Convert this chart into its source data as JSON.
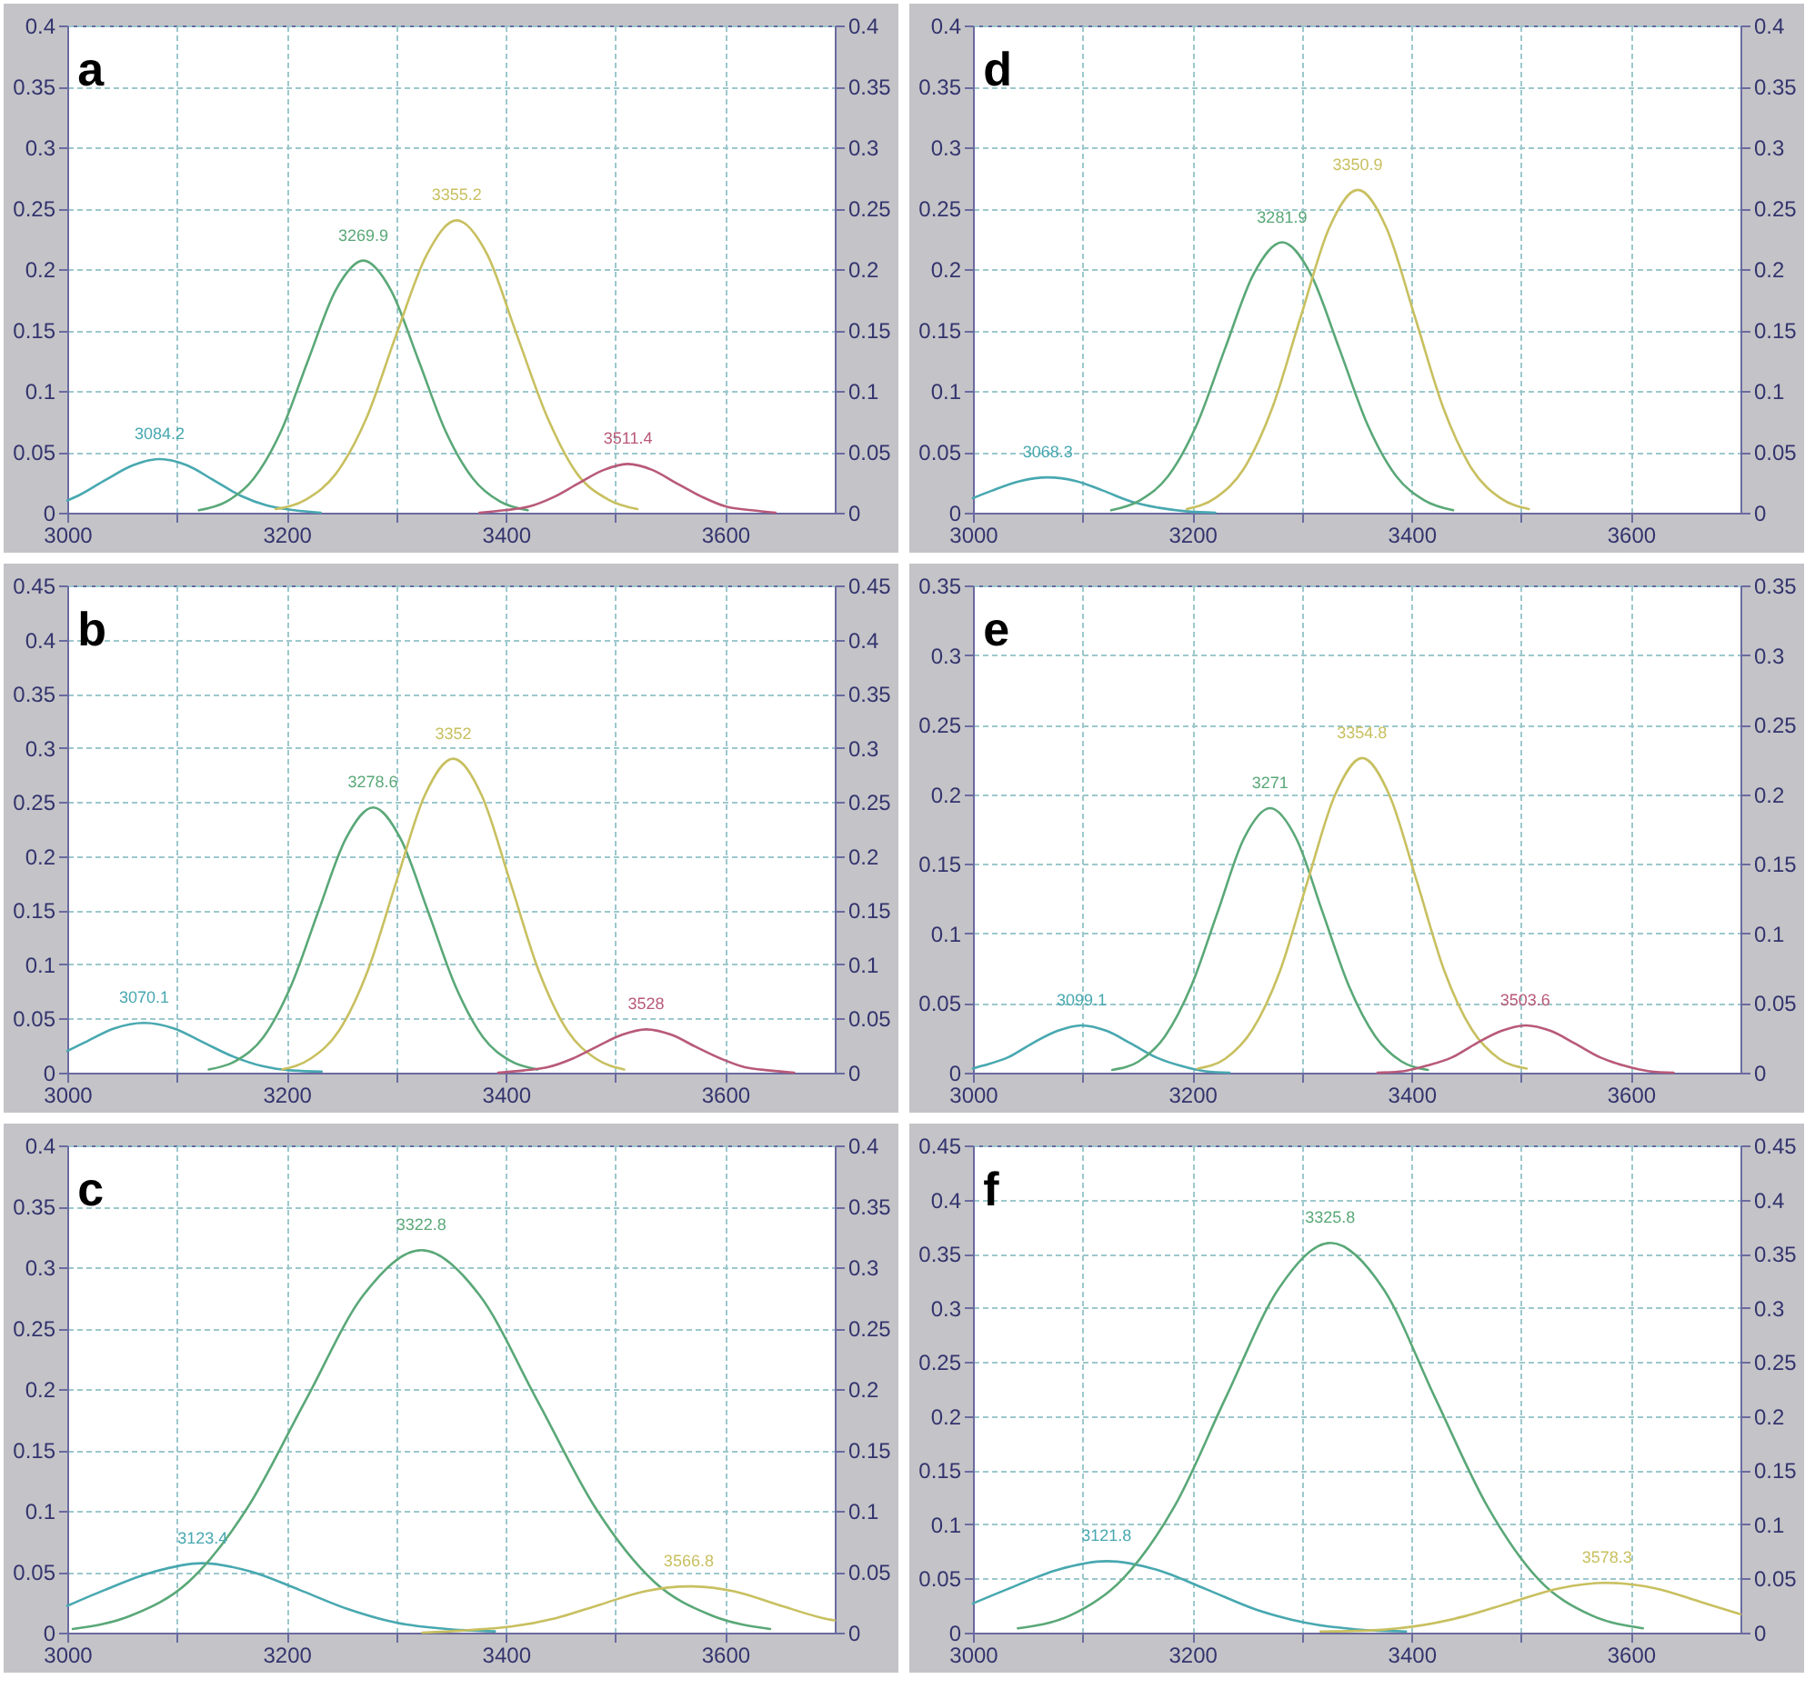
{
  "chart_data": [
    {
      "type": "line",
      "title": "a",
      "xlim": [
        3000,
        3700
      ],
      "xticks": [
        3000,
        {
          "value": 3100,
          "label": null
        },
        3200,
        {
          "value": 3300,
          "label": null
        },
        3400,
        {
          "value": 3500,
          "label": null
        },
        3600
      ],
      "ylim": [
        0,
        0.4
      ],
      "yticks": [
        0,
        0.05,
        0.1,
        0.15,
        0.2,
        0.25,
        0.3,
        0.35,
        0.4
      ],
      "y2lim": [
        0,
        0.4
      ],
      "y2ticks": [
        0,
        0.05,
        0.1,
        0.15,
        0.2,
        0.25,
        0.3,
        0.35,
        0.4
      ],
      "grid": true,
      "line_style": "solid",
      "series": [
        {
          "color": "#48a8b0",
          "x": [
            3000,
            3010,
            3035,
            3060,
            3084,
            3109,
            3133,
            3158,
            3182,
            3207,
            3231
          ],
          "values": [
            0.01,
            0.014,
            0.027,
            0.039,
            0.044,
            0.039,
            0.027,
            0.014,
            0.006,
            0.002,
            0.0
          ]
        },
        {
          "color": "#5aa878",
          "x": [
            3120,
            3145,
            3170,
            3195,
            3220,
            3245,
            3270,
            3295,
            3320,
            3345,
            3370,
            3395,
            3420
          ],
          "values": [
            0.002,
            0.009,
            0.028,
            0.067,
            0.126,
            0.183,
            0.207,
            0.183,
            0.126,
            0.067,
            0.028,
            0.009,
            0.002
          ]
        },
        {
          "color": "#c8c060",
          "x": [
            3190,
            3218,
            3245,
            3273,
            3300,
            3328,
            3355,
            3383,
            3410,
            3438,
            3465,
            3493,
            3520
          ],
          "values": [
            0.003,
            0.011,
            0.032,
            0.078,
            0.146,
            0.212,
            0.24,
            0.212,
            0.146,
            0.078,
            0.032,
            0.011,
            0.003
          ]
        },
        {
          "color": "#b85a78",
          "x": [
            3376,
            3399,
            3421,
            3444,
            3466,
            3489,
            3511,
            3534,
            3556,
            3579,
            3601,
            3624,
            3646
          ],
          "values": [
            0.0,
            0.002,
            0.005,
            0.013,
            0.024,
            0.035,
            0.04,
            0.035,
            0.024,
            0.013,
            0.005,
            0.002,
            0.0
          ]
        }
      ],
      "annotations": [
        {
          "text": "3084.2",
          "x": 3084.2,
          "y": 0.044
        },
        {
          "text": "3269.9",
          "x": 3269.9,
          "y": 0.207
        },
        {
          "text": "3355.2",
          "x": 3355.2,
          "y": 0.24
        },
        {
          "text": "3511.4",
          "x": 3511.4,
          "y": 0.04
        }
      ]
    },
    {
      "type": "line",
      "title": "b",
      "xlim": [
        3000,
        3700
      ],
      "xticks": [
        3000,
        {
          "value": 3100,
          "label": null
        },
        3200,
        {
          "value": 3300,
          "label": null
        },
        3400,
        {
          "value": 3500,
          "label": null
        },
        3600
      ],
      "ylim": [
        0,
        0.45
      ],
      "yticks": [
        0,
        0.05,
        0.1,
        0.15,
        0.2,
        0.25,
        0.3,
        0.35,
        0.4,
        0.45
      ],
      "y2lim": [
        0,
        0.45
      ],
      "y2ticks": [
        0,
        0.05,
        0.1,
        0.15,
        0.2,
        0.25,
        0.3,
        0.35,
        0.4,
        0.45
      ],
      "grid": true,
      "line_style": "solid",
      "series": [
        {
          "color": "#48a8b0",
          "x": [
            3000,
            3016,
            3043,
            3070,
            3097,
            3124,
            3151,
            3178,
            3205,
            3232
          ],
          "values": [
            0.02,
            0.028,
            0.041,
            0.046,
            0.041,
            0.028,
            0.015,
            0.006,
            0.002,
            0.001
          ]
        },
        {
          "color": "#5aa878",
          "x": [
            3129,
            3154,
            3179,
            3204,
            3229,
            3254,
            3279,
            3304,
            3329,
            3354,
            3379,
            3404,
            3429
          ],
          "values": [
            0.003,
            0.011,
            0.033,
            0.08,
            0.149,
            0.216,
            0.245,
            0.216,
            0.149,
            0.08,
            0.033,
            0.011,
            0.003
          ]
        },
        {
          "color": "#c8c060",
          "x": [
            3196,
            3222,
            3248,
            3274,
            3300,
            3326,
            3352,
            3378,
            3404,
            3430,
            3456,
            3482,
            3508
          ],
          "values": [
            0.003,
            0.013,
            0.039,
            0.094,
            0.176,
            0.256,
            0.29,
            0.256,
            0.176,
            0.094,
            0.039,
            0.013,
            0.003
          ]
        },
        {
          "color": "#b85a78",
          "x": [
            3393,
            3416,
            3438,
            3461,
            3483,
            3506,
            3528,
            3551,
            3573,
            3596,
            3618,
            3641,
            3663
          ],
          "values": [
            0.0,
            0.002,
            0.005,
            0.013,
            0.024,
            0.035,
            0.04,
            0.035,
            0.024,
            0.013,
            0.005,
            0.002,
            0.0
          ]
        }
      ],
      "annotations": [
        {
          "text": "3070.1",
          "x": 3070.1,
          "y": 0.046
        },
        {
          "text": "3278.6",
          "x": 3278.6,
          "y": 0.245
        },
        {
          "text": "3352",
          "x": 3352,
          "y": 0.29
        },
        {
          "text": "3528",
          "x": 3528,
          "y": 0.04
        }
      ]
    },
    {
      "type": "line",
      "title": "c",
      "xlim": [
        3000,
        3700
      ],
      "xticks": [
        3000,
        {
          "value": 3100,
          "label": null
        },
        3200,
        {
          "value": 3300,
          "label": null
        },
        3400,
        {
          "value": 3500,
          "label": null
        },
        3600
      ],
      "ylim": [
        0,
        0.4
      ],
      "yticks": [
        0,
        0.05,
        0.1,
        0.15,
        0.2,
        0.25,
        0.3,
        0.35,
        0.4
      ],
      "y2lim": [
        0,
        0.4
      ],
      "y2ticks": [
        0,
        0.05,
        0.1,
        0.15,
        0.2,
        0.25,
        0.3,
        0.35,
        0.4
      ],
      "grid": true,
      "line_style": "solid",
      "series": [
        {
          "color": "#48a8b0",
          "x": [
            3000,
            3034,
            3079,
            3123,
            3168,
            3212,
            3257,
            3301,
            3346,
            3390
          ],
          "values": [
            0.022,
            0.035,
            0.05,
            0.057,
            0.05,
            0.035,
            0.019,
            0.008,
            0.003,
            0.001
          ]
        },
        {
          "color": "#5aa878",
          "x": [
            3005,
            3058,
            3111,
            3164,
            3217,
            3270,
            3323,
            3376,
            3429,
            3482,
            3535,
            3588,
            3641
          ],
          "values": [
            0.003,
            0.014,
            0.042,
            0.102,
            0.19,
            0.277,
            0.314,
            0.277,
            0.19,
            0.102,
            0.042,
            0.014,
            0.003
          ]
        },
        {
          "color": "#c8c060",
          "x": [
            3324,
            3365,
            3405,
            3446,
            3486,
            3527,
            3567,
            3608,
            3648,
            3689,
            3700
          ],
          "values": [
            0.0,
            0.002,
            0.005,
            0.012,
            0.023,
            0.034,
            0.038,
            0.034,
            0.023,
            0.012,
            0.01
          ]
        }
      ],
      "annotations": [
        {
          "text": "3123.4",
          "x": 3123.4,
          "y": 0.057
        },
        {
          "text": "3322.8",
          "x": 3322.8,
          "y": 0.314
        },
        {
          "text": "3566.8",
          "x": 3566.8,
          "y": 0.038
        }
      ]
    },
    {
      "type": "line",
      "title": "d",
      "xlim": [
        3000,
        3700
      ],
      "xticks": [
        3000,
        {
          "value": 3100,
          "label": null
        },
        3200,
        {
          "value": 3300,
          "label": null
        },
        3400,
        {
          "value": 3500,
          "label": null
        },
        3600
      ],
      "ylim": [
        0,
        0.4
      ],
      "yticks": [
        0,
        0.05,
        0.1,
        0.15,
        0.2,
        0.25,
        0.3,
        0.35,
        0.4
      ],
      "y2lim": [
        0,
        0.4
      ],
      "y2ticks": [
        0,
        0.05,
        0.1,
        0.15,
        0.2,
        0.25,
        0.3,
        0.35,
        0.4
      ],
      "grid": true,
      "line_style": "solid",
      "series": [
        {
          "color": "#48a8b0",
          "x": [
            3000,
            3017,
            3043,
            3068,
            3094,
            3119,
            3145,
            3170,
            3196,
            3221
          ],
          "values": [
            0.012,
            0.018,
            0.026,
            0.029,
            0.026,
            0.018,
            0.009,
            0.004,
            0.001,
            0.0
          ]
        },
        {
          "color": "#5aa878",
          "x": [
            3126,
            3152,
            3178,
            3204,
            3230,
            3256,
            3282,
            3308,
            3334,
            3360,
            3386,
            3412,
            3438
          ],
          "values": [
            0.002,
            0.01,
            0.03,
            0.072,
            0.135,
            0.196,
            0.222,
            0.196,
            0.135,
            0.072,
            0.03,
            0.01,
            0.002
          ]
        },
        {
          "color": "#c8c060",
          "x": [
            3195,
            3221,
            3247,
            3273,
            3299,
            3325,
            3351,
            3377,
            3403,
            3429,
            3455,
            3481,
            3507
          ],
          "values": [
            0.003,
            0.012,
            0.036,
            0.086,
            0.161,
            0.234,
            0.265,
            0.234,
            0.161,
            0.086,
            0.036,
            0.012,
            0.003
          ]
        }
      ],
      "annotations": [
        {
          "text": "3068.3",
          "x": 3068.3,
          "y": 0.029
        },
        {
          "text": "3281.9",
          "x": 3281.9,
          "y": 0.222
        },
        {
          "text": "3350.9",
          "x": 3350.9,
          "y": 0.265
        }
      ]
    },
    {
      "type": "line",
      "title": "e",
      "xlim": [
        3000,
        3700
      ],
      "xticks": [
        3000,
        {
          "value": 3100,
          "label": null
        },
        3200,
        {
          "value": 3300,
          "label": null
        },
        3400,
        {
          "value": 3500,
          "label": null
        },
        3600
      ],
      "ylim": [
        0,
        0.35
      ],
      "yticks": [
        0,
        0.05,
        0.1,
        0.15,
        0.2,
        0.25,
        0.3,
        0.35
      ],
      "y2lim": [
        0,
        0.35
      ],
      "y2ticks": [
        0,
        0.05,
        0.1,
        0.15,
        0.2,
        0.25,
        0.3,
        0.35
      ],
      "grid": true,
      "line_style": "solid",
      "series": [
        {
          "color": "#48a8b0",
          "x": [
            3000,
            3009,
            3032,
            3054,
            3077,
            3099,
            3122,
            3144,
            3167,
            3189,
            3212,
            3234
          ],
          "values": [
            0.003,
            0.005,
            0.011,
            0.021,
            0.03,
            0.034,
            0.03,
            0.021,
            0.011,
            0.005,
            0.001,
            0.0
          ]
        },
        {
          "color": "#5aa878",
          "x": [
            3127,
            3151,
            3175,
            3199,
            3223,
            3247,
            3271,
            3295,
            3319,
            3343,
            3367,
            3391,
            3415
          ],
          "values": [
            0.002,
            0.008,
            0.026,
            0.062,
            0.115,
            0.168,
            0.19,
            0.168,
            0.115,
            0.062,
            0.026,
            0.008,
            0.002
          ]
        },
        {
          "color": "#c8c060",
          "x": [
            3205,
            3230,
            3255,
            3280,
            3305,
            3330,
            3355,
            3380,
            3405,
            3430,
            3455,
            3480,
            3505
          ],
          "values": [
            0.003,
            0.01,
            0.031,
            0.073,
            0.137,
            0.199,
            0.226,
            0.199,
            0.137,
            0.073,
            0.031,
            0.01,
            0.003
          ]
        },
        {
          "color": "#b85a78",
          "x": [
            3369,
            3392,
            3414,
            3437,
            3459,
            3482,
            3504,
            3527,
            3549,
            3572,
            3594,
            3617,
            3639
          ],
          "values": [
            0.0,
            0.001,
            0.005,
            0.011,
            0.021,
            0.03,
            0.034,
            0.03,
            0.021,
            0.011,
            0.005,
            0.001,
            0.0
          ]
        }
      ],
      "annotations": [
        {
          "text": "3099.1",
          "x": 3099.1,
          "y": 0.034
        },
        {
          "text": "3271",
          "x": 3271,
          "y": 0.19
        },
        {
          "text": "3354.8",
          "x": 3354.8,
          "y": 0.226
        },
        {
          "text": "3503.6",
          "x": 3503.6,
          "y": 0.034
        }
      ]
    },
    {
      "type": "line",
      "title": "f",
      "xlim": [
        3000,
        3700
      ],
      "xticks": [
        3000,
        {
          "value": 3100,
          "label": null
        },
        3200,
        {
          "value": 3300,
          "label": null
        },
        3400,
        {
          "value": 3500,
          "label": null
        },
        3600
      ],
      "ylim": [
        0,
        0.45
      ],
      "yticks": [
        0,
        0.05,
        0.1,
        0.15,
        0.2,
        0.25,
        0.3,
        0.35,
        0.4,
        0.45
      ],
      "y2lim": [
        0,
        0.45
      ],
      "y2ticks": [
        0,
        0.05,
        0.1,
        0.15,
        0.2,
        0.25,
        0.3,
        0.35,
        0.4,
        0.45
      ],
      "grid": true,
      "line_style": "solid",
      "series": [
        {
          "color": "#48a8b0",
          "x": [
            3000,
            3031,
            3077,
            3122,
            3168,
            3213,
            3259,
            3304,
            3350,
            3395
          ],
          "values": [
            0.027,
            0.04,
            0.058,
            0.066,
            0.058,
            0.04,
            0.021,
            0.009,
            0.003,
            0.001
          ]
        },
        {
          "color": "#5aa878",
          "x": [
            3041,
            3089,
            3136,
            3184,
            3231,
            3279,
            3326,
            3374,
            3421,
            3469,
            3516,
            3564,
            3611
          ],
          "values": [
            0.004,
            0.016,
            0.049,
            0.117,
            0.218,
            0.318,
            0.36,
            0.318,
            0.218,
            0.117,
            0.049,
            0.016,
            0.004
          ]
        },
        {
          "color": "#c8c060",
          "x": [
            3317,
            3361,
            3404,
            3448,
            3491,
            3535,
            3578,
            3622,
            3665,
            3700
          ],
          "values": [
            0.001,
            0.002,
            0.006,
            0.015,
            0.028,
            0.041,
            0.046,
            0.041,
            0.028,
            0.017
          ]
        }
      ],
      "annotations": [
        {
          "text": "3121.8",
          "x": 3121.8,
          "y": 0.066
        },
        {
          "text": "3325.8",
          "x": 3325.8,
          "y": 0.36
        },
        {
          "text": "3578.3",
          "x": 3578.3,
          "y": 0.046
        }
      ]
    }
  ]
}
